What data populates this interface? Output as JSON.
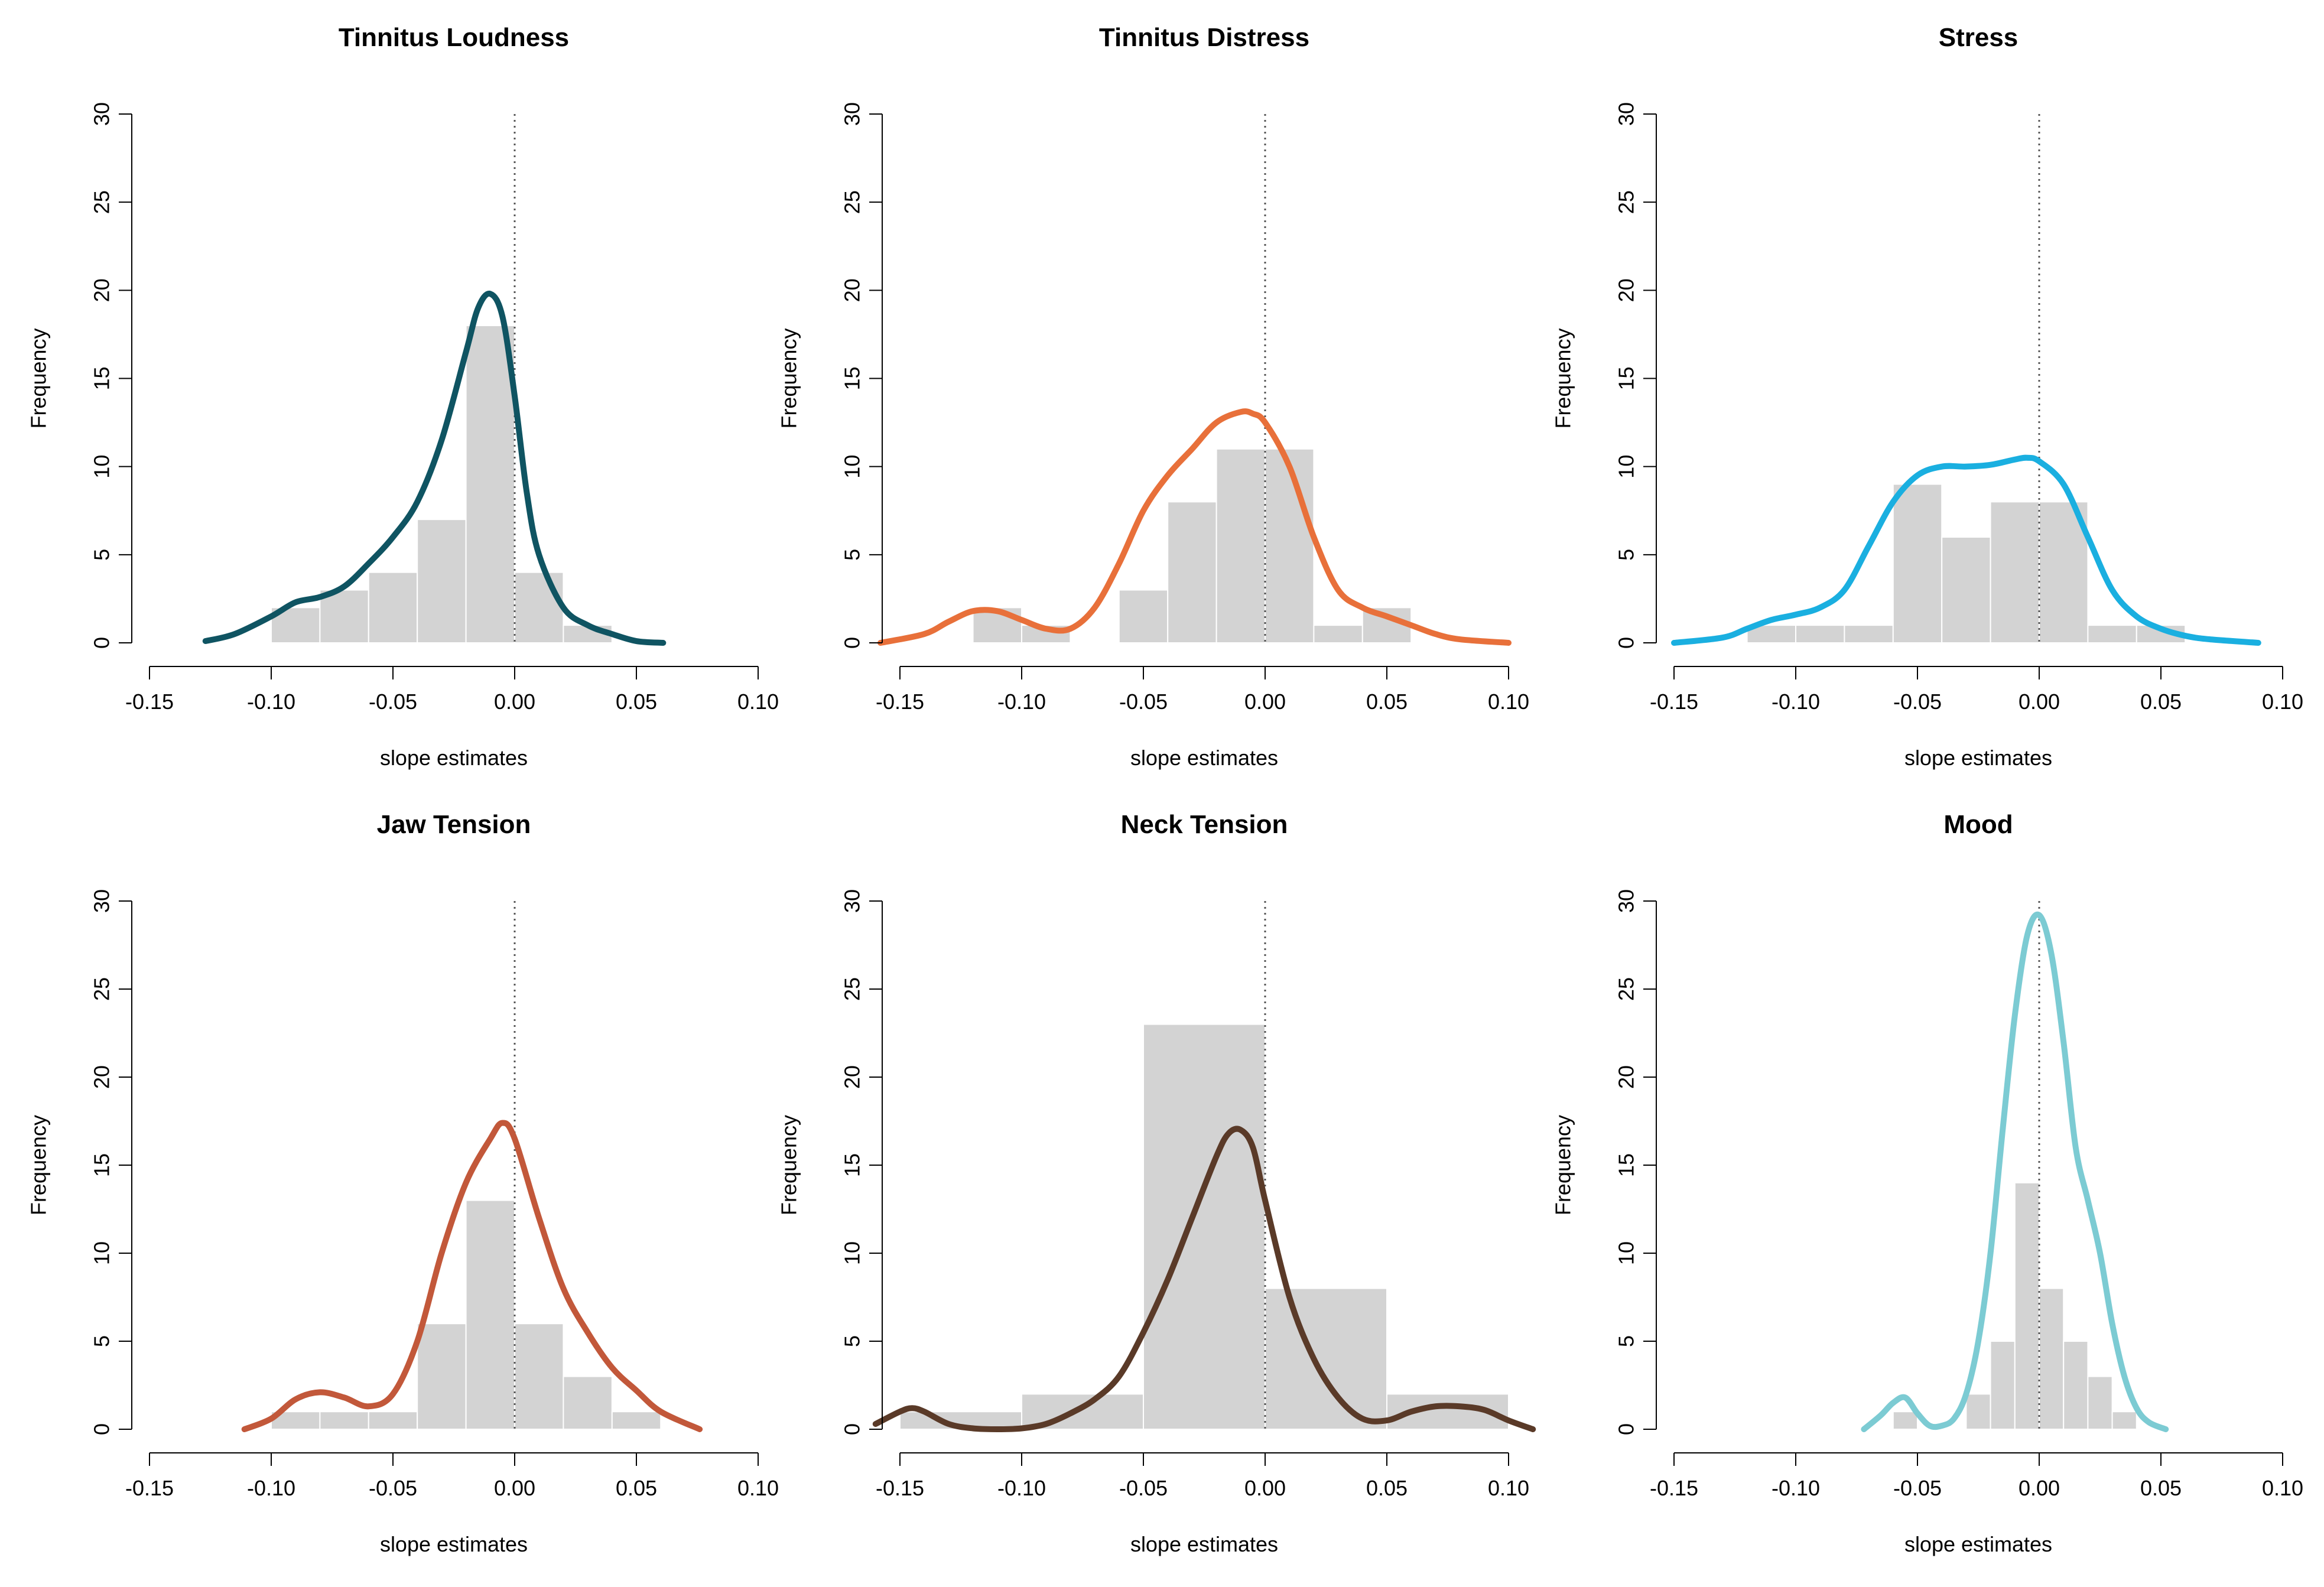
{
  "chart_data": [
    {
      "type": "histogram",
      "title": "Tinnitus Loudness",
      "xlabel": "slope estimates",
      "ylabel": "Frequency",
      "xlim": [
        -0.15,
        0.1
      ],
      "ylim": [
        0,
        30
      ],
      "x_ticks": [
        "-0.15",
        "-0.10",
        "-0.05",
        "0.00",
        "0.05",
        "0.10"
      ],
      "y_ticks": [
        "0",
        "5",
        "10",
        "15",
        "20",
        "25",
        "30"
      ],
      "bin_edges": [
        -0.1,
        -0.08,
        -0.06,
        -0.04,
        -0.02,
        0.0,
        0.02,
        0.04
      ],
      "counts": [
        2,
        3,
        4,
        7,
        18,
        4,
        1
      ],
      "reference_line_x": 0,
      "density_color": "#0f5462",
      "density_curve": {
        "x": [
          -0.127,
          -0.115,
          -0.1,
          -0.09,
          -0.08,
          -0.07,
          -0.06,
          -0.05,
          -0.04,
          -0.03,
          -0.02,
          -0.015,
          -0.01,
          -0.005,
          0.0,
          0.005,
          0.01,
          0.02,
          0.03,
          0.04,
          0.05,
          0.061
        ],
        "y": [
          0.1,
          0.5,
          1.5,
          2.3,
          2.6,
          3.2,
          4.5,
          6.0,
          8.0,
          11.5,
          16.5,
          19.0,
          19.8,
          18.5,
          14.0,
          8.5,
          5.0,
          2.0,
          1.0,
          0.5,
          0.1,
          0.0
        ]
      }
    },
    {
      "type": "histogram",
      "title": "Tinnitus Distress",
      "xlabel": "slope estimates",
      "ylabel": "Frequency",
      "xlim": [
        -0.15,
        0.1
      ],
      "ylim": [
        0,
        30
      ],
      "x_ticks": [
        "-0.15",
        "-0.10",
        "-0.05",
        "0.00",
        "0.05",
        "0.10"
      ],
      "y_ticks": [
        "0",
        "5",
        "10",
        "15",
        "20",
        "25",
        "30"
      ],
      "bin_edges": [
        -0.12,
        -0.1,
        -0.08,
        -0.06,
        -0.04,
        -0.02,
        0.0,
        0.02,
        0.04,
        0.06
      ],
      "counts": [
        2,
        1,
        0,
        3,
        8,
        11,
        11,
        1,
        2
      ],
      "reference_line_x": 0,
      "density_color": "#e8703a",
      "density_curve": {
        "x": [
          -0.158,
          -0.14,
          -0.13,
          -0.12,
          -0.11,
          -0.1,
          -0.09,
          -0.08,
          -0.07,
          -0.06,
          -0.05,
          -0.04,
          -0.03,
          -0.02,
          -0.01,
          -0.005,
          0.0,
          0.01,
          0.02,
          0.03,
          0.04,
          0.05,
          0.06,
          0.07,
          0.08,
          0.1
        ],
        "y": [
          0.0,
          0.5,
          1.2,
          1.8,
          1.8,
          1.3,
          0.8,
          0.8,
          2.0,
          4.5,
          7.5,
          9.5,
          11.0,
          12.5,
          13.1,
          13.0,
          12.5,
          10.0,
          6.0,
          3.0,
          2.0,
          1.5,
          1.0,
          0.5,
          0.2,
          0.0
        ]
      }
    },
    {
      "type": "histogram",
      "title": "Stress",
      "xlabel": "slope estimates",
      "ylabel": "Frequency",
      "xlim": [
        -0.15,
        0.1
      ],
      "ylim": [
        0,
        30
      ],
      "x_ticks": [
        "-0.15",
        "-0.10",
        "-0.05",
        "0.00",
        "0.05",
        "0.10"
      ],
      "y_ticks": [
        "0",
        "5",
        "10",
        "15",
        "20",
        "25",
        "30"
      ],
      "bin_edges": [
        -0.12,
        -0.1,
        -0.08,
        -0.06,
        -0.04,
        -0.02,
        0.0,
        0.02,
        0.04,
        0.06
      ],
      "counts": [
        1,
        1,
        1,
        9,
        6,
        8,
        8,
        1,
        1
      ],
      "reference_line_x": 0,
      "density_color": "#1aafe0",
      "density_curve": {
        "x": [
          -0.15,
          -0.13,
          -0.12,
          -0.11,
          -0.1,
          -0.09,
          -0.08,
          -0.07,
          -0.06,
          -0.05,
          -0.04,
          -0.03,
          -0.02,
          -0.01,
          -0.005,
          0.0,
          0.01,
          0.02,
          0.03,
          0.04,
          0.05,
          0.06,
          0.07,
          0.09
        ],
        "y": [
          0.0,
          0.3,
          0.8,
          1.3,
          1.6,
          2.0,
          3.0,
          5.5,
          8.0,
          9.5,
          10.0,
          10.0,
          10.1,
          10.4,
          10.5,
          10.3,
          9.0,
          6.0,
          3.0,
          1.5,
          0.8,
          0.4,
          0.2,
          0.0
        ]
      }
    },
    {
      "type": "histogram",
      "title": "Jaw Tension",
      "xlabel": "slope estimates",
      "ylabel": "Frequency",
      "xlim": [
        -0.15,
        0.1
      ],
      "ylim": [
        0,
        30
      ],
      "x_ticks": [
        "-0.15",
        "-0.10",
        "-0.05",
        "0.00",
        "0.05",
        "0.10"
      ],
      "y_ticks": [
        "0",
        "5",
        "10",
        "15",
        "20",
        "25",
        "30"
      ],
      "bin_edges": [
        -0.1,
        -0.08,
        -0.06,
        -0.04,
        -0.02,
        0.0,
        0.02,
        0.04,
        0.06
      ],
      "counts": [
        1,
        1,
        1,
        6,
        13,
        6,
        3,
        1
      ],
      "reference_line_x": 0,
      "density_color": "#c2583a",
      "density_curve": {
        "x": [
          -0.111,
          -0.1,
          -0.09,
          -0.08,
          -0.07,
          -0.06,
          -0.05,
          -0.04,
          -0.03,
          -0.02,
          -0.01,
          -0.005,
          0.0,
          0.01,
          0.02,
          0.03,
          0.04,
          0.05,
          0.06,
          0.076
        ],
        "y": [
          0.0,
          0.6,
          1.7,
          2.1,
          1.8,
          1.3,
          2.0,
          5.0,
          10.0,
          14.0,
          16.5,
          17.4,
          16.5,
          12.0,
          8.0,
          5.5,
          3.5,
          2.2,
          1.0,
          0.0
        ]
      }
    },
    {
      "type": "histogram",
      "title": "Neck Tension",
      "xlabel": "slope estimates",
      "ylabel": "Frequency",
      "xlim": [
        -0.15,
        0.1
      ],
      "ylim": [
        0,
        30
      ],
      "x_ticks": [
        "-0.15",
        "-0.10",
        "-0.05",
        "0.00",
        "0.05",
        "0.10"
      ],
      "y_ticks": [
        "0",
        "5",
        "10",
        "15",
        "20",
        "25",
        "30"
      ],
      "bin_edges": [
        -0.15,
        -0.1,
        -0.05,
        0.0,
        0.05,
        0.1
      ],
      "counts": [
        1,
        2,
        23,
        8,
        2
      ],
      "reference_line_x": 0,
      "density_color": "#5a3a28",
      "density_curve": {
        "x": [
          -0.16,
          -0.15,
          -0.145,
          -0.14,
          -0.13,
          -0.12,
          -0.11,
          -0.1,
          -0.09,
          -0.08,
          -0.07,
          -0.06,
          -0.05,
          -0.04,
          -0.03,
          -0.02,
          -0.015,
          -0.01,
          -0.005,
          0.0,
          0.01,
          0.02,
          0.03,
          0.04,
          0.05,
          0.06,
          0.07,
          0.08,
          0.09,
          0.1,
          0.11
        ],
        "y": [
          0.3,
          1.0,
          1.2,
          1.0,
          0.3,
          0.05,
          0.0,
          0.05,
          0.3,
          0.9,
          1.7,
          3.0,
          5.5,
          8.5,
          12.0,
          15.5,
          16.8,
          17.0,
          16.0,
          13.0,
          7.5,
          4.0,
          1.8,
          0.6,
          0.5,
          1.0,
          1.3,
          1.3,
          1.1,
          0.5,
          0.0
        ]
      }
    },
    {
      "type": "histogram",
      "title": "Mood",
      "xlabel": "slope estimates",
      "ylabel": "Frequency",
      "xlim": [
        -0.15,
        0.1
      ],
      "ylim": [
        0,
        30
      ],
      "x_ticks": [
        "-0.15",
        "-0.10",
        "-0.05",
        "0.00",
        "0.05",
        "0.10"
      ],
      "y_ticks": [
        "0",
        "5",
        "10",
        "15",
        "20",
        "25",
        "30"
      ],
      "bin_edges": [
        -0.06,
        -0.05,
        -0.04,
        -0.03,
        -0.02,
        -0.01,
        0.0,
        0.01,
        0.02,
        0.03,
        0.04
      ],
      "counts": [
        1,
        0,
        0,
        2,
        5,
        14,
        8,
        5,
        3,
        1
      ],
      "reference_line_x": 0,
      "density_color": "#7ccbd3",
      "density_curve": {
        "x": [
          -0.072,
          -0.065,
          -0.06,
          -0.055,
          -0.05,
          -0.045,
          -0.04,
          -0.035,
          -0.03,
          -0.025,
          -0.02,
          -0.015,
          -0.01,
          -0.005,
          0.0,
          0.005,
          0.01,
          0.015,
          0.02,
          0.025,
          0.03,
          0.035,
          0.04,
          0.045,
          0.052
        ],
        "y": [
          0.0,
          0.8,
          1.5,
          1.8,
          0.9,
          0.2,
          0.2,
          0.6,
          2.0,
          5.0,
          10.0,
          17.0,
          23.5,
          28.0,
          29.2,
          27.0,
          22.0,
          16.0,
          13.0,
          10.0,
          6.0,
          3.0,
          1.2,
          0.4,
          0.0
        ]
      }
    }
  ]
}
